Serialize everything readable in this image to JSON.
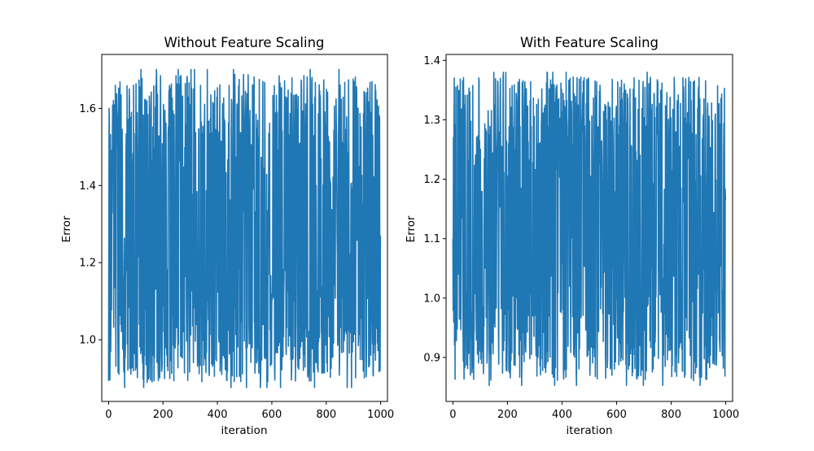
{
  "chart_data": [
    {
      "type": "line",
      "title": "Without Feature Scaling",
      "xlabel": "iteration",
      "ylabel": "Error",
      "xlim": [
        -25,
        1025
      ],
      "ylim": [
        0.84,
        1.74
      ],
      "xticks": [
        0,
        200,
        400,
        600,
        800,
        1000
      ],
      "yticks": [
        1.0,
        1.2,
        1.4,
        1.6
      ],
      "ytick_labels": [
        "1.0",
        "1.2",
        "1.4",
        "1.6"
      ],
      "series": [
        {
          "color": "#1f77b4",
          "n_points": 1000,
          "x_range": [
            0,
            999
          ],
          "y_min": 0.876,
          "y_max": 1.701,
          "first_y": 0.893,
          "last_y": 1.27
        }
      ],
      "grid": false
    },
    {
      "type": "line",
      "title": "With Feature Scaling",
      "xlabel": "iteration",
      "ylabel": "Error",
      "xlim": [
        -25,
        1025
      ],
      "ylim": [
        0.826,
        1.41
      ],
      "xticks": [
        0,
        200,
        400,
        600,
        800,
        1000
      ],
      "yticks": [
        0.9,
        1.0,
        1.1,
        1.2,
        1.3,
        1.4
      ],
      "ytick_labels": [
        "0.9",
        "1.0",
        "1.1",
        "1.2",
        "1.3",
        "1.4"
      ],
      "series": [
        {
          "color": "#1f77b4",
          "n_points": 1000,
          "x_range": [
            0,
            999
          ],
          "y_min": 0.853,
          "y_max": 1.38,
          "first_y": 1.1,
          "last_y": 1.165
        }
      ],
      "grid": false
    }
  ]
}
